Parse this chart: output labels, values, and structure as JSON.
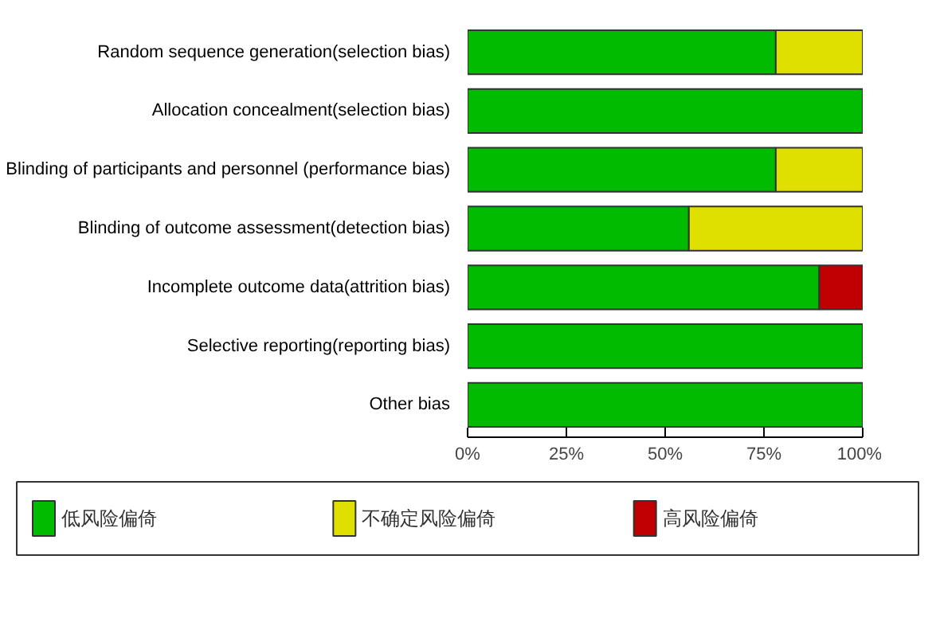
{
  "chart_data": {
    "type": "bar",
    "orientation": "horizontal",
    "stacked": true,
    "categories": [
      "Random sequence generation(selection bias)",
      "Allocation concealment(selection bias)",
      "Blinding of participants and personnel (performance bias)",
      "Blinding of outcome assessment(detection bias)",
      "Incomplete outcome data(attrition bias)",
      "Selective reporting(reporting bias)",
      "Other bias"
    ],
    "series": [
      {
        "name": "低风险偏倚",
        "color": "#00bb00",
        "values": [
          78,
          100,
          78,
          56,
          89,
          100,
          100
        ]
      },
      {
        "name": "不确定风险偏倚",
        "color": "#e0e000",
        "values": [
          22,
          0,
          22,
          44,
          0,
          0,
          0
        ]
      },
      {
        "name": "高风险偏倚",
        "color": "#c00000",
        "values": [
          0,
          0,
          0,
          0,
          11,
          0,
          0
        ]
      }
    ],
    "xlim": [
      0,
      100
    ],
    "xticks": [
      {
        "value": 0,
        "label": "0%"
      },
      {
        "value": 25,
        "label": "25%"
      },
      {
        "value": 50,
        "label": "50%"
      },
      {
        "value": 75,
        "label": "75%"
      },
      {
        "value": 100,
        "label": "100%"
      }
    ],
    "grid": false,
    "legend": "bottom"
  }
}
